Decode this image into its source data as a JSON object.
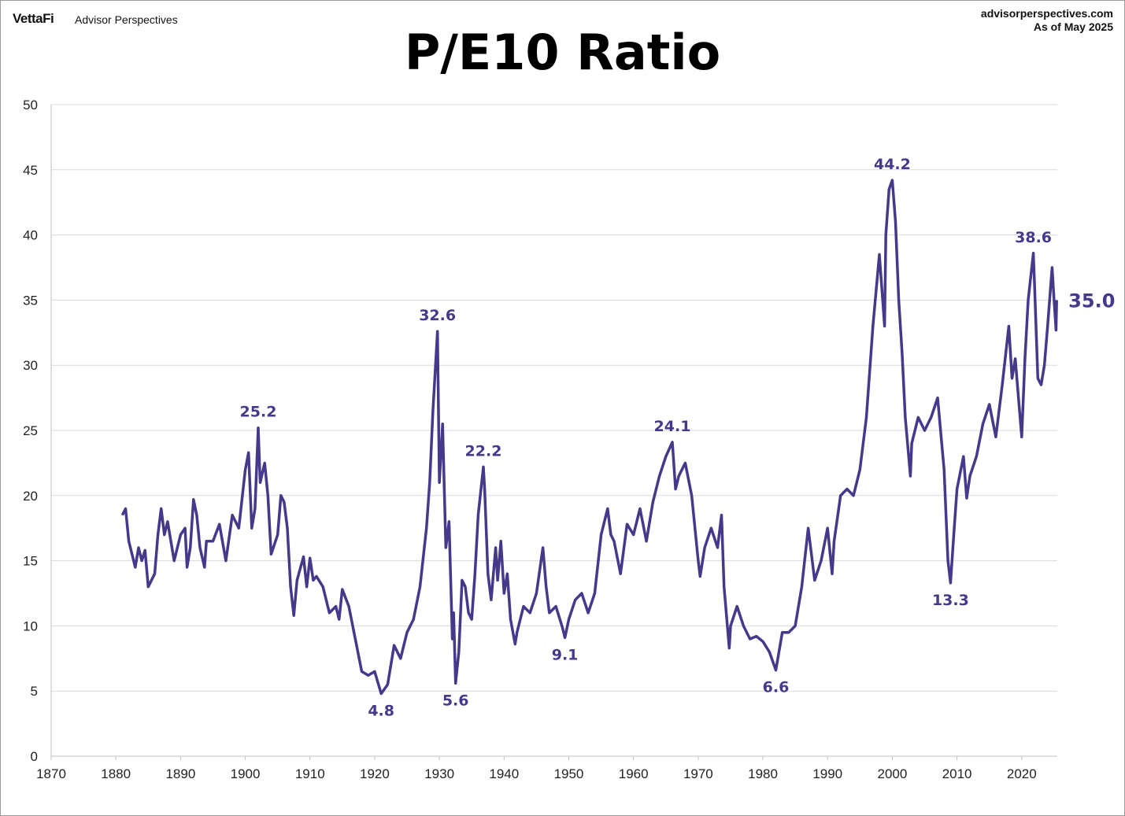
{
  "header": {
    "logo": "VettaFi",
    "brand": "Advisor Perspectives",
    "site": "advisorperspectives.com",
    "as_of": "As of May 2025"
  },
  "chart_data": {
    "type": "line",
    "title": "P/E10 Ratio",
    "xlabel": "",
    "ylabel": "",
    "xlim": [
      1870,
      2025.5
    ],
    "ylim": [
      0,
      50
    ],
    "grid": true,
    "x_ticks": [
      "1870",
      "1880",
      "1890",
      "1900",
      "1910",
      "1920",
      "1930",
      "1940",
      "1950",
      "1960",
      "1970",
      "1980",
      "1990",
      "2000",
      "2010",
      "2020"
    ],
    "y_ticks": [
      "0",
      "5",
      "10",
      "15",
      "20",
      "25",
      "30",
      "35",
      "40",
      "45",
      "50"
    ],
    "color": "#46388a",
    "series": [
      {
        "name": "P/E10",
        "points": [
          [
            1881.0,
            18.5
          ],
          [
            1881.5,
            19.0
          ],
          [
            1882,
            16.5
          ],
          [
            1883,
            14.5
          ],
          [
            1883.5,
            16
          ],
          [
            1884,
            15
          ],
          [
            1884.5,
            15.8
          ],
          [
            1885,
            13
          ],
          [
            1885.5,
            13.5
          ],
          [
            1886,
            14
          ],
          [
            1886.5,
            17
          ],
          [
            1887,
            19
          ],
          [
            1887.5,
            17
          ],
          [
            1888,
            18
          ],
          [
            1889,
            15
          ],
          [
            1889.5,
            16
          ],
          [
            1890,
            17
          ],
          [
            1890.7,
            17.5
          ],
          [
            1891,
            14.5
          ],
          [
            1891.5,
            16
          ],
          [
            1892,
            19.7
          ],
          [
            1892.5,
            18.5
          ],
          [
            1893,
            16
          ],
          [
            1893.7,
            14.5
          ],
          [
            1894,
            16.5
          ],
          [
            1895,
            16.5
          ],
          [
            1896,
            17.8
          ],
          [
            1897,
            15
          ],
          [
            1898,
            18.5
          ],
          [
            1899,
            17.5
          ],
          [
            1900,
            22
          ],
          [
            1900.5,
            23.3
          ],
          [
            1901,
            17.5
          ],
          [
            1901.5,
            19
          ],
          [
            1902,
            25.2
          ],
          [
            1902.3,
            21
          ],
          [
            1903,
            22.5
          ],
          [
            1903.5,
            20
          ],
          [
            1904,
            15.5
          ],
          [
            1905,
            17
          ],
          [
            1905.5,
            20
          ],
          [
            1906,
            19.5
          ],
          [
            1906.5,
            17.5
          ],
          [
            1907,
            13
          ],
          [
            1907.5,
            10.8
          ],
          [
            1908,
            13.5
          ],
          [
            1909,
            15.3
          ],
          [
            1909.5,
            13
          ],
          [
            1910,
            15.2
          ],
          [
            1910.5,
            13.5
          ],
          [
            1911,
            13.8
          ],
          [
            1912,
            13
          ],
          [
            1913,
            11
          ],
          [
            1914,
            11.5
          ],
          [
            1914.5,
            10.5
          ],
          [
            1915,
            12.8
          ],
          [
            1916,
            11.5
          ],
          [
            1917,
            9
          ],
          [
            1918,
            6.5
          ],
          [
            1919,
            6.2
          ],
          [
            1920,
            6.5
          ],
          [
            1921,
            4.8
          ],
          [
            1922,
            5.5
          ],
          [
            1922.5,
            7
          ],
          [
            1923,
            8.5
          ],
          [
            1924,
            7.5
          ],
          [
            1924.5,
            8.5
          ],
          [
            1925,
            9.5
          ],
          [
            1926,
            10.5
          ],
          [
            1927,
            13
          ],
          [
            1928,
            17.5
          ],
          [
            1928.5,
            21
          ],
          [
            1929,
            26.5
          ],
          [
            1929.7,
            32.6
          ],
          [
            1930,
            21
          ],
          [
            1930.5,
            25.5
          ],
          [
            1931,
            16
          ],
          [
            1931.5,
            18
          ],
          [
            1932,
            9
          ],
          [
            1932.2,
            11
          ],
          [
            1932.5,
            5.6
          ],
          [
            1933,
            8
          ],
          [
            1933.5,
            13.5
          ],
          [
            1934,
            13
          ],
          [
            1934.5,
            11
          ],
          [
            1935,
            10.5
          ],
          [
            1935.5,
            14
          ],
          [
            1936,
            18.5
          ],
          [
            1936.8,
            22.2
          ],
          [
            1937,
            20.5
          ],
          [
            1937.5,
            14
          ],
          [
            1938,
            12
          ],
          [
            1938.7,
            16
          ],
          [
            1939,
            13.5
          ],
          [
            1939.5,
            16.5
          ],
          [
            1940,
            12.5
          ],
          [
            1940.5,
            14
          ],
          [
            1941,
            10.5
          ],
          [
            1941.7,
            8.6
          ],
          [
            1942,
            9.5
          ],
          [
            1943,
            11.5
          ],
          [
            1944,
            11
          ],
          [
            1945,
            12.5
          ],
          [
            1946,
            16
          ],
          [
            1946.5,
            13
          ],
          [
            1947,
            11
          ],
          [
            1948,
            11.5
          ],
          [
            1949,
            9.9
          ],
          [
            1949.4,
            9.1
          ],
          [
            1950,
            10.5
          ],
          [
            1951,
            12
          ],
          [
            1952,
            12.5
          ],
          [
            1953,
            11
          ],
          [
            1954,
            12.5
          ],
          [
            1955,
            17
          ],
          [
            1956,
            19
          ],
          [
            1956.5,
            17
          ],
          [
            1957,
            16.5
          ],
          [
            1958,
            14
          ],
          [
            1959,
            17.8
          ],
          [
            1960,
            17
          ],
          [
            1961,
            19
          ],
          [
            1962,
            16.5
          ],
          [
            1963,
            19.5
          ],
          [
            1964,
            21.5
          ],
          [
            1965,
            23
          ],
          [
            1966,
            24.1
          ],
          [
            1966.5,
            20.5
          ],
          [
            1967,
            21.5
          ],
          [
            1968,
            22.5
          ],
          [
            1969,
            20
          ],
          [
            1970,
            15
          ],
          [
            1970.3,
            13.8
          ],
          [
            1971,
            16
          ],
          [
            1972,
            17.5
          ],
          [
            1973,
            16
          ],
          [
            1973.6,
            18.5
          ],
          [
            1974,
            13
          ],
          [
            1974.8,
            8.3
          ],
          [
            1975,
            10
          ],
          [
            1976,
            11.5
          ],
          [
            1977,
            10
          ],
          [
            1978,
            9
          ],
          [
            1979,
            9.2
          ],
          [
            1980,
            8.8
          ],
          [
            1981,
            8
          ],
          [
            1982,
            6.6
          ],
          [
            1983,
            9.5
          ],
          [
            1984,
            9.5
          ],
          [
            1985,
            10
          ],
          [
            1986,
            13
          ],
          [
            1987,
            17.5
          ],
          [
            1988,
            13.5
          ],
          [
            1989,
            15
          ],
          [
            1990,
            17.5
          ],
          [
            1990.7,
            14
          ],
          [
            1991,
            16.5
          ],
          [
            1992,
            20
          ],
          [
            1993,
            20.5
          ],
          [
            1994,
            20
          ],
          [
            1995,
            22
          ],
          [
            1996,
            26
          ],
          [
            1997,
            33
          ],
          [
            1998,
            38.5
          ],
          [
            1998.8,
            33
          ],
          [
            1999,
            40
          ],
          [
            1999.5,
            43.5
          ],
          [
            2000,
            44.2
          ],
          [
            2000.5,
            41
          ],
          [
            2001,
            35
          ],
          [
            2001.5,
            31
          ],
          [
            2002,
            26
          ],
          [
            2002.8,
            21.5
          ],
          [
            2003,
            24
          ],
          [
            2004,
            26
          ],
          [
            2005,
            25
          ],
          [
            2006,
            26
          ],
          [
            2007,
            27.5
          ],
          [
            2008,
            22
          ],
          [
            2008.6,
            15
          ],
          [
            2009,
            13.3
          ],
          [
            2009.5,
            17
          ],
          [
            2010,
            20.5
          ],
          [
            2011,
            23
          ],
          [
            2011.5,
            19.8
          ],
          [
            2012,
            21.5
          ],
          [
            2013,
            23
          ],
          [
            2014,
            25.5
          ],
          [
            2015,
            27
          ],
          [
            2016,
            24.5
          ],
          [
            2017,
            28.5
          ],
          [
            2018,
            33
          ],
          [
            2018.5,
            29
          ],
          [
            2019,
            30.5
          ],
          [
            2020,
            24.5
          ],
          [
            2020.5,
            30.5
          ],
          [
            2021,
            35
          ],
          [
            2021.8,
            38.6
          ],
          [
            2022,
            36
          ],
          [
            2022.5,
            29
          ],
          [
            2023,
            28.5
          ],
          [
            2023.5,
            30
          ],
          [
            2024,
            33
          ],
          [
            2024.7,
            37.5
          ],
          [
            2025,
            35
          ],
          [
            2025.3,
            32.7
          ],
          [
            2025.4,
            35.0
          ]
        ]
      }
    ],
    "annotations": [
      {
        "text": "25.2",
        "x": 1902,
        "y": 25.2,
        "position": "above"
      },
      {
        "text": "4.8",
        "x": 1921,
        "y": 4.8,
        "position": "below"
      },
      {
        "text": "32.6",
        "x": 1929.7,
        "y": 32.6,
        "position": "above"
      },
      {
        "text": "5.6",
        "x": 1932.5,
        "y": 5.6,
        "position": "below"
      },
      {
        "text": "22.2",
        "x": 1936.8,
        "y": 22.2,
        "position": "above"
      },
      {
        "text": "9.1",
        "x": 1949.4,
        "y": 9.1,
        "position": "below"
      },
      {
        "text": "24.1",
        "x": 1966,
        "y": 24.1,
        "position": "above"
      },
      {
        "text": "6.6",
        "x": 1982,
        "y": 6.6,
        "position": "below"
      },
      {
        "text": "44.2",
        "x": 2000,
        "y": 44.2,
        "position": "above"
      },
      {
        "text": "13.3",
        "x": 2009,
        "y": 13.3,
        "position": "below"
      },
      {
        "text": "38.6",
        "x": 2021.8,
        "y": 38.6,
        "position": "above"
      }
    ],
    "latest": {
      "text": "35.0",
      "x": 2025.4,
      "y": 35.0
    }
  }
}
